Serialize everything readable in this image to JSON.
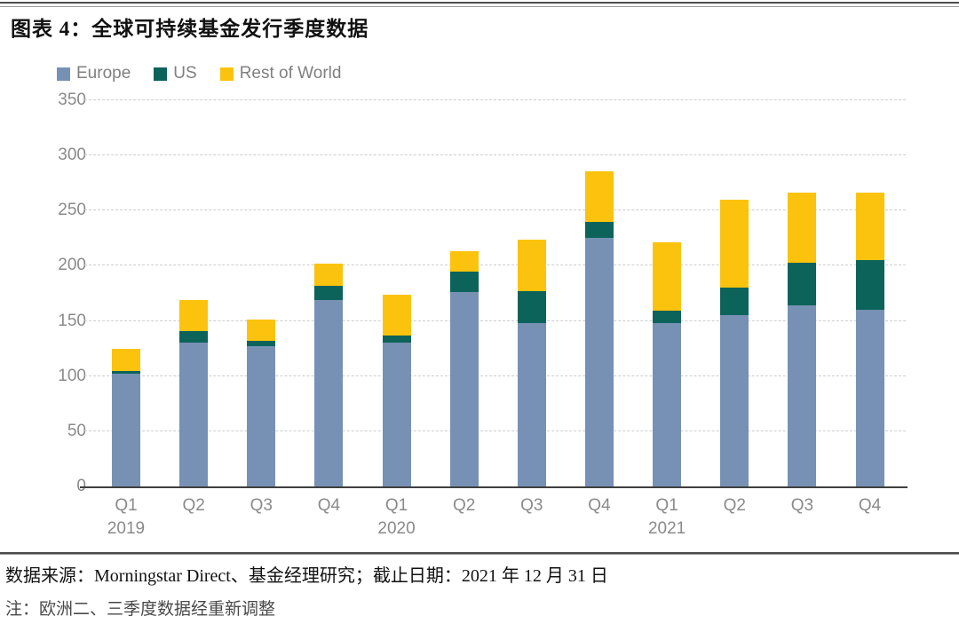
{
  "page": {
    "title": "图表 4：全球可持续基金发行季度数据",
    "source_text": "数据来源：Morningstar Direct、基金经理研究；截止日期：2021 年 12 月 31 日",
    "note_text": "注：欧洲二、三季度数据经重新调整"
  },
  "colors": {
    "europe": "#7791B4",
    "us": "#0C635A",
    "rest_of_world": "#FBC30D",
    "axis_text": "#8a8a8a",
    "legend_text": "#7f7f7f",
    "gridline": "#cdcdcd",
    "baseline": "#3f3f3f"
  },
  "chart_data": {
    "type": "bar",
    "stacked": true,
    "title": "全球可持续基金发行季度数据",
    "categories": [
      "Q1 2019",
      "Q2 2019",
      "Q3 2019",
      "Q4 2019",
      "Q1 2020",
      "Q2 2020",
      "Q3 2020",
      "Q4 2020",
      "Q1 2021",
      "Q2 2021",
      "Q3 2021",
      "Q4 2021"
    ],
    "x_tick_labels": [
      {
        "quarter": "Q1",
        "year": "2019"
      },
      {
        "quarter": "Q2",
        "year": ""
      },
      {
        "quarter": "Q3",
        "year": ""
      },
      {
        "quarter": "Q4",
        "year": ""
      },
      {
        "quarter": "Q1",
        "year": "2020"
      },
      {
        "quarter": "Q2",
        "year": ""
      },
      {
        "quarter": "Q3",
        "year": ""
      },
      {
        "quarter": "Q4",
        "year": ""
      },
      {
        "quarter": "Q1",
        "year": "2021"
      },
      {
        "quarter": "Q2",
        "year": ""
      },
      {
        "quarter": "Q3",
        "year": ""
      },
      {
        "quarter": "Q4",
        "year": ""
      }
    ],
    "series": [
      {
        "name": "Europe",
        "color": "#7791B4",
        "values": [
          102,
          130,
          127,
          169,
          130,
          176,
          148,
          225,
          148,
          155,
          164,
          160
        ]
      },
      {
        "name": "US",
        "color": "#0C635A",
        "values": [
          3,
          11,
          5,
          13,
          7,
          19,
          29,
          15,
          11,
          25,
          39,
          45
        ]
      },
      {
        "name": "Rest of World",
        "color": "#FBC30D",
        "values": [
          20,
          28,
          19,
          20,
          37,
          18,
          47,
          46,
          62,
          80,
          63,
          61
        ]
      }
    ],
    "totals": [
      125,
      169,
      151,
      202,
      174,
      213,
      224,
      286,
      221,
      260,
      266,
      266
    ],
    "xlabel": "",
    "ylabel": "",
    "ylim": [
      0,
      350
    ],
    "y_ticks": [
      0,
      50,
      100,
      150,
      200,
      250,
      300,
      350
    ],
    "grid": "horizontal-dashed",
    "legend_position": "top-left"
  }
}
